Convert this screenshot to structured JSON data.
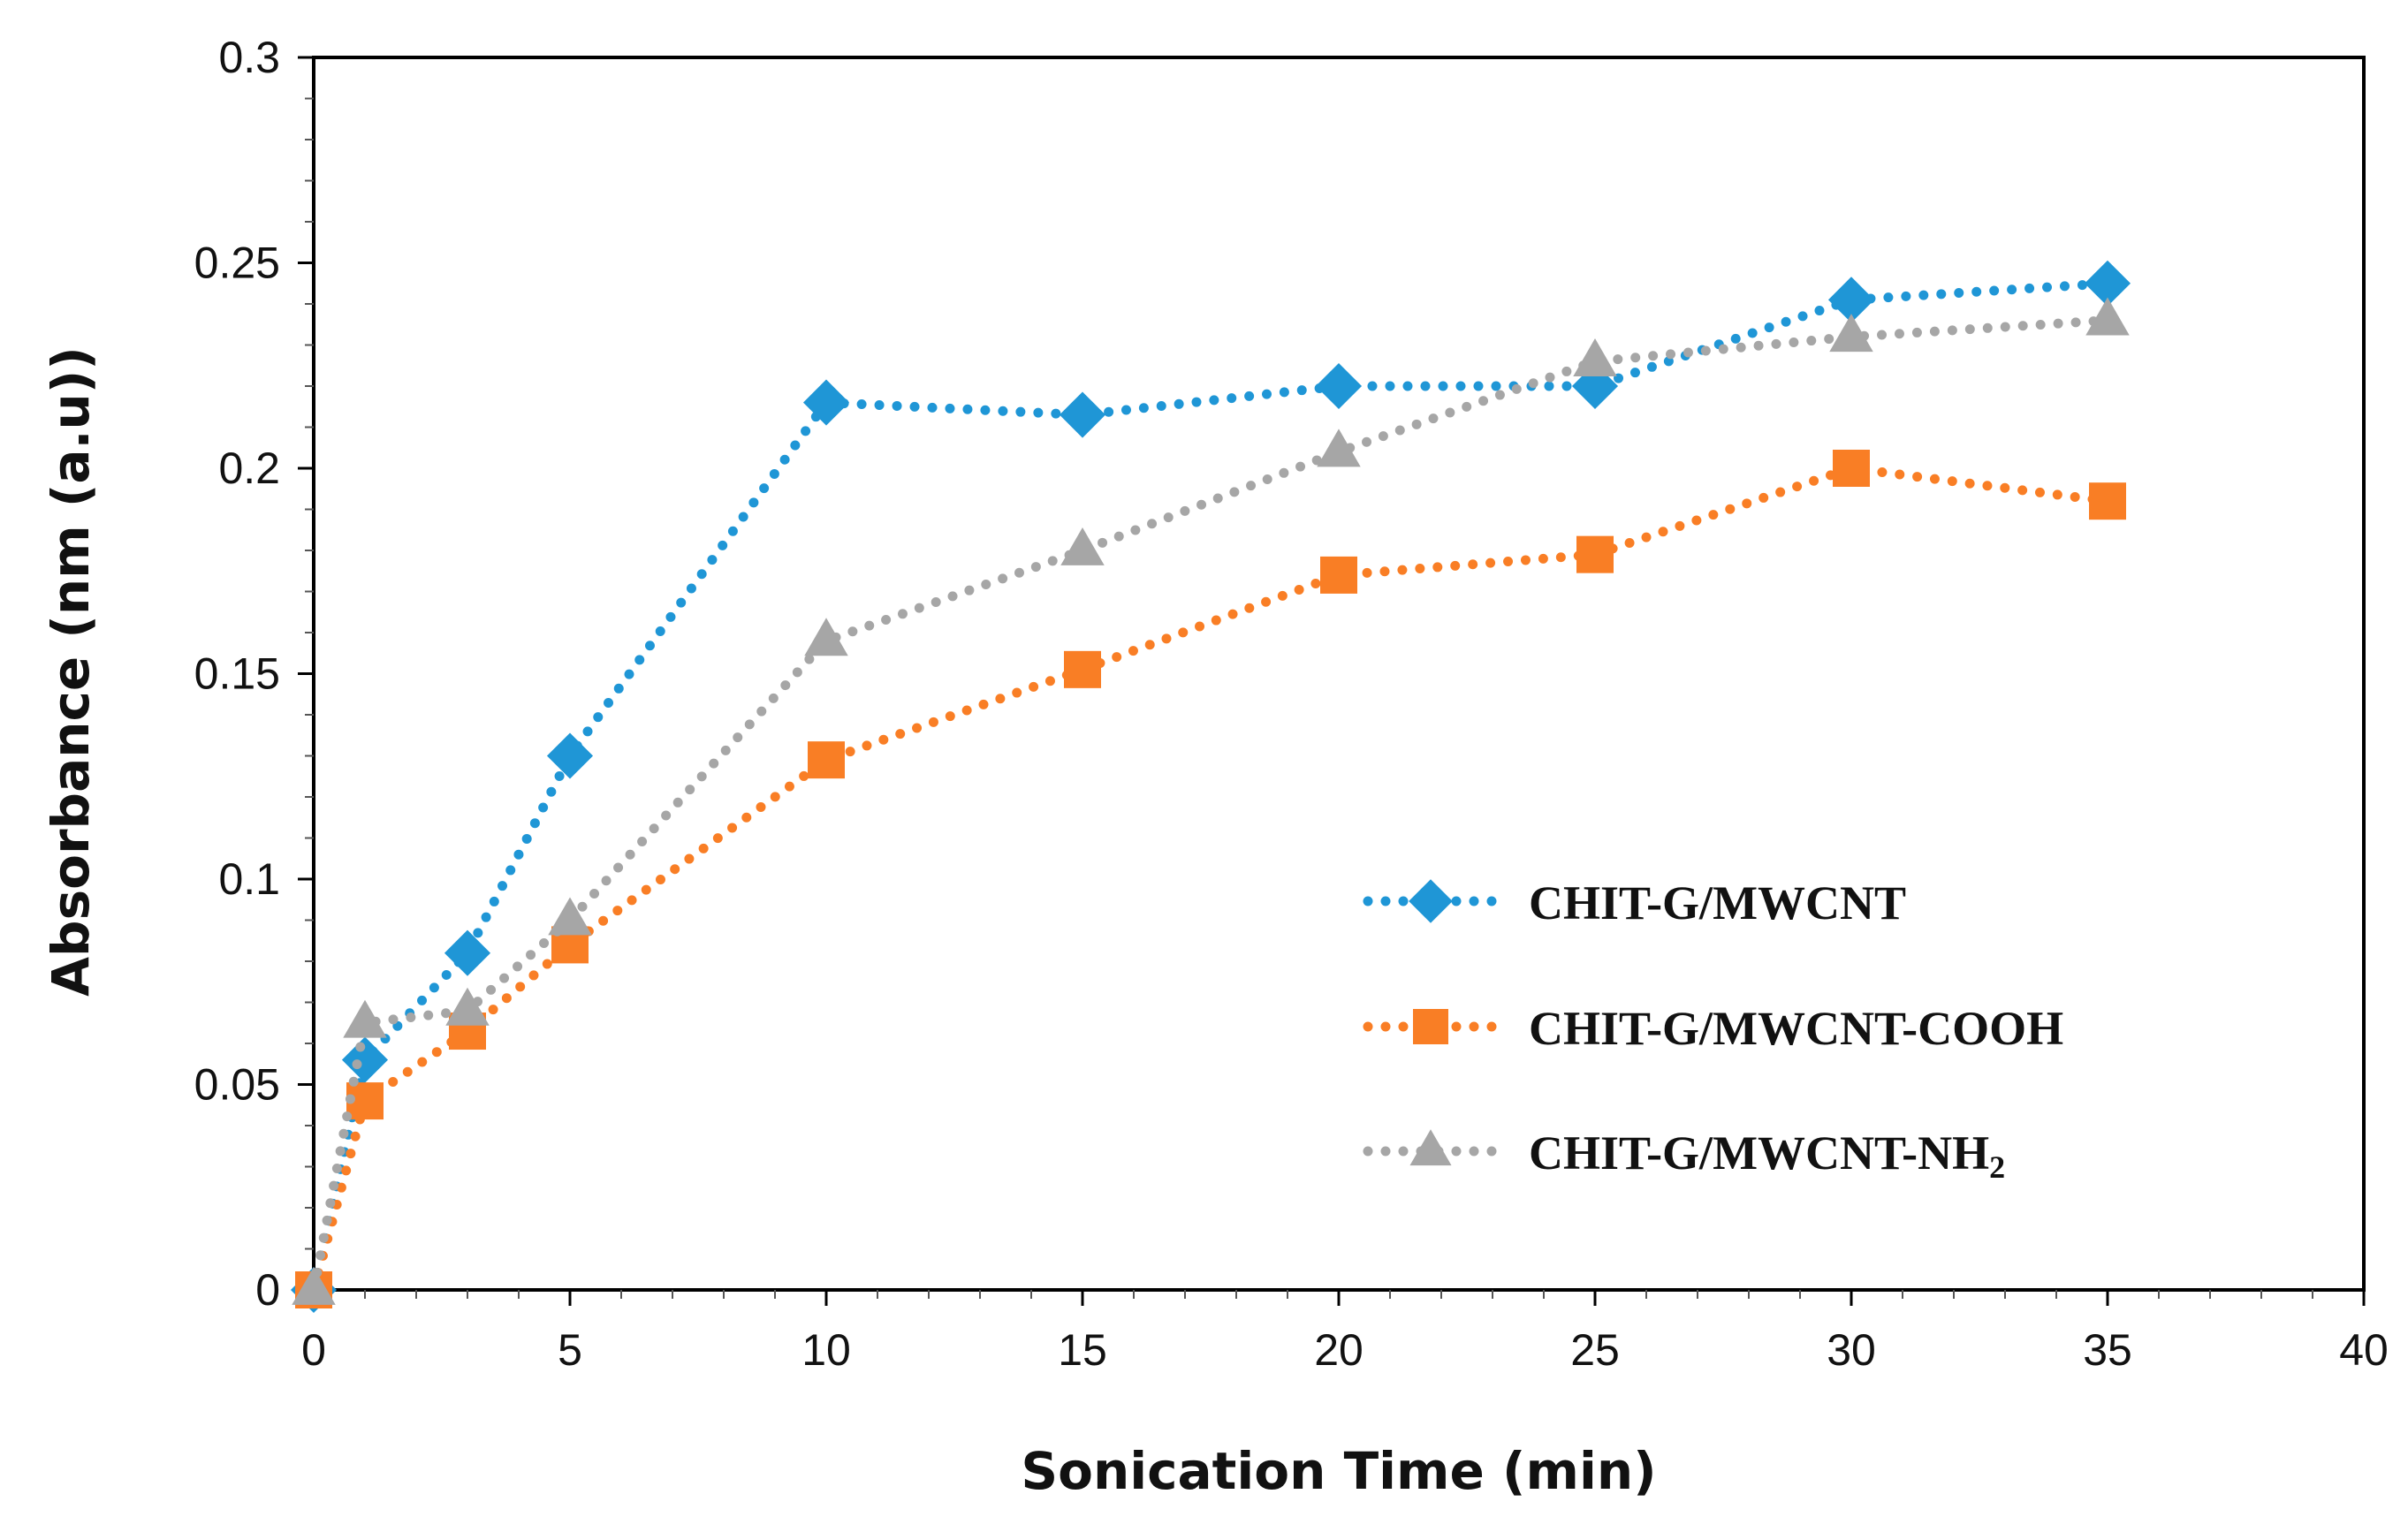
{
  "chart_data": {
    "type": "line",
    "title": "",
    "xlabel": "Sonication Time (min)",
    "ylabel": "Absorbance (nm (a.u))",
    "xlim": [
      0,
      40
    ],
    "ylim": [
      0,
      0.3
    ],
    "x_ticks": [
      "0",
      "5",
      "10",
      "15",
      "20",
      "25",
      "30",
      "35",
      "40"
    ],
    "y_ticks": [
      "0",
      "0.05",
      "0.1",
      "0.15",
      "0.2",
      "0.25",
      "0.3"
    ],
    "grid": false,
    "legend_position": "right-middle",
    "line_style": "dotted",
    "series": [
      {
        "name": "CHIT-G/MWCNT",
        "marker": "diamond",
        "color": "#1f96d6",
        "x": [
          0,
          1,
          3,
          5,
          10,
          15,
          20,
          25,
          30,
          35
        ],
        "y": [
          0,
          0.056,
          0.082,
          0.13,
          0.216,
          0.213,
          0.22,
          0.22,
          0.241,
          0.245
        ]
      },
      {
        "name": "CHIT-G/MWCNT-COOH",
        "marker": "square",
        "color": "#f97e25",
        "x": [
          0,
          1,
          3,
          5,
          10,
          15,
          20,
          25,
          30,
          35
        ],
        "y": [
          0,
          0.046,
          0.063,
          0.084,
          0.129,
          0.151,
          0.174,
          0.179,
          0.2,
          0.192
        ]
      },
      {
        "name": "CHIT-G/MWCNT-NH",
        "name_subscript": "2",
        "marker": "triangle",
        "color": "#a6a6a6",
        "x": [
          0,
          1,
          3,
          5,
          10,
          15,
          20,
          25,
          30,
          35
        ],
        "y": [
          0,
          0.065,
          0.068,
          0.09,
          0.158,
          0.18,
          0.204,
          0.226,
          0.232,
          0.236
        ]
      }
    ]
  }
}
